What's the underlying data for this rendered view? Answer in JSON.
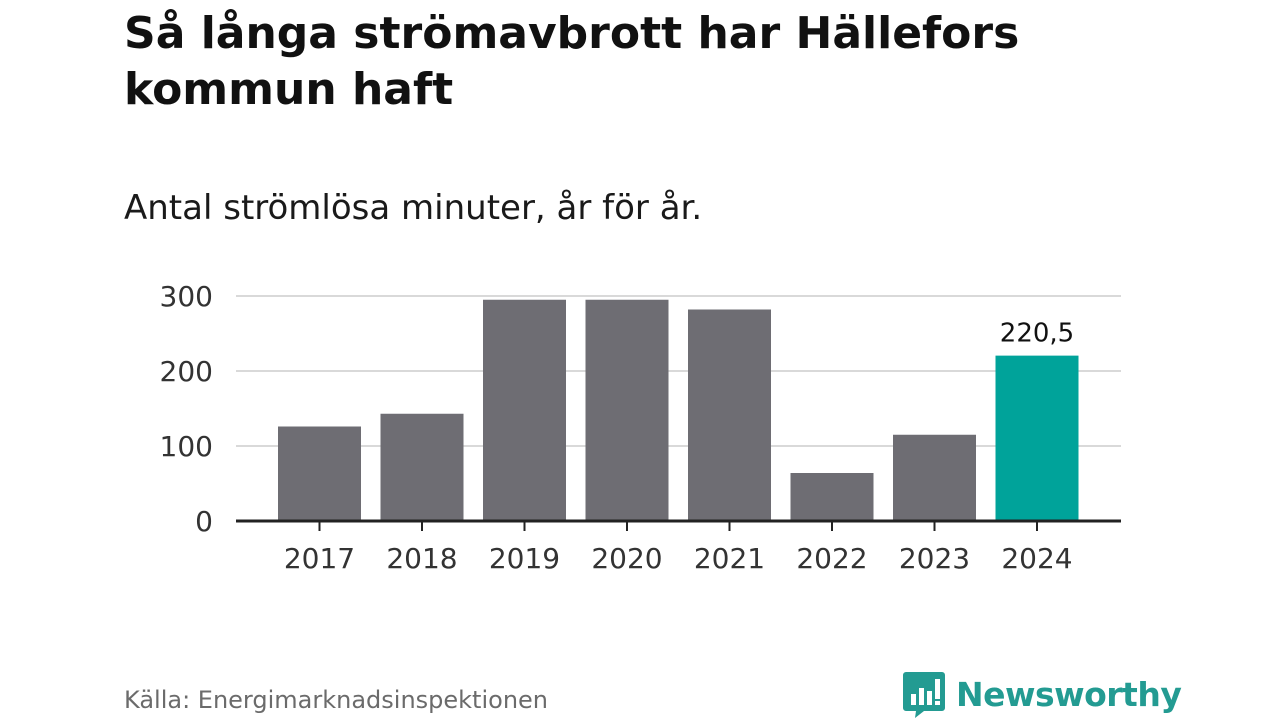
{
  "header": {
    "title": "Så långa strömavbrott har Hällefors kommun haft",
    "subtitle": "Antal strömlösa minuter, år för år."
  },
  "footer": {
    "source": "Källa: Energimarknadsinspektionen",
    "brand": "Newsworthy",
    "brand_icon": "bar-chart-bubble-icon"
  },
  "colors": {
    "bar": "#6e6d73",
    "highlight": "#00a39a",
    "brand": "#239b92",
    "grid": "#d9d9d9",
    "axis": "#222222"
  },
  "chart_data": {
    "type": "bar",
    "categories": [
      "2017",
      "2018",
      "2019",
      "2020",
      "2021",
      "2022",
      "2023",
      "2024"
    ],
    "values": [
      126,
      143,
      295,
      295,
      282,
      64,
      115,
      220.5
    ],
    "highlight_index": 7,
    "data_labels": [
      {
        "index": 7,
        "text": "220,5"
      }
    ],
    "yticks": [
      "0",
      "100",
      "200",
      "300"
    ],
    "ylim": [
      0,
      300
    ],
    "grid": true,
    "title": "Så långa strömavbrott har Hällefors kommun haft",
    "subtitle": "Antal strömlösa minuter, år för år.",
    "xlabel": "",
    "ylabel": ""
  }
}
